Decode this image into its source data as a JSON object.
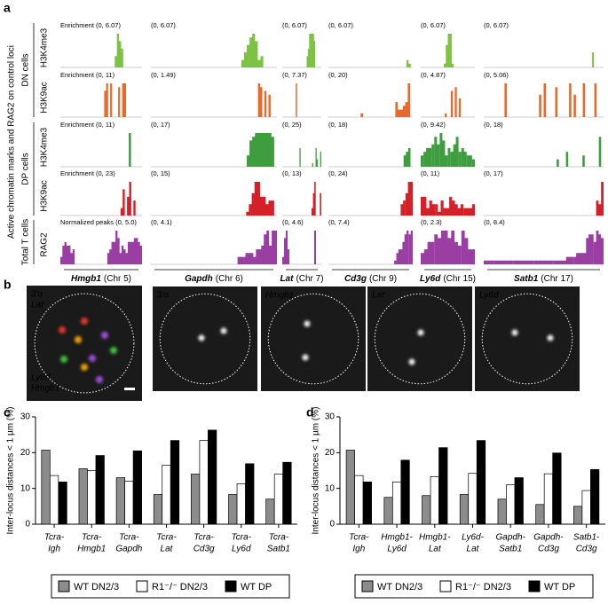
{
  "panel_labels": [
    "a",
    "b",
    "c",
    "d"
  ],
  "panel_a": {
    "title": "Active chromatin marks and RAG2 on control loci",
    "groups": [
      {
        "label": "DN cells",
        "rows": [
          0,
          1
        ]
      },
      {
        "label": "DP cells",
        "rows": [
          2,
          3
        ]
      },
      {
        "label": "Total T cells",
        "rows": [
          4
        ]
      }
    ],
    "rows": [
      {
        "mark": "H3K4me3",
        "color": "#7dc242",
        "ranges": [
          "Enrichment (0, 6.07)",
          "(0, 6.07)",
          "(0, 6.07)",
          "(0, 6.07)",
          "(0, 6.07)",
          "(0, 6.07)"
        ]
      },
      {
        "mark": "H3K9ac",
        "color": "#e8692a",
        "ranges": [
          "Enrichment (0, 11)",
          "(0, 1.49)",
          "(0, 7.37)",
          "(0, 20)",
          "(0, 4.87)",
          "(0, 5.06)"
        ]
      },
      {
        "mark": "H3K4me3",
        "color": "#3e9e3e",
        "ranges": [
          "Enrichment (0, 11)",
          "(0, 17)",
          "(0, 25)",
          "(0, 18)",
          "(0, 9.42)",
          "(0, 18)"
        ]
      },
      {
        "mark": "H3K9ac",
        "color": "#d62027",
        "ranges": [
          "Enrichment (0, 23)",
          "(0, 15)",
          "(0, 13)",
          "(0, 24)",
          "(0, 11)",
          "(0, 17)"
        ]
      },
      {
        "mark": "RAG2",
        "color": "#9b3ea3",
        "ranges": [
          "Normalized peaks (0, 5.0)",
          "(0, 4.1)",
          "(0, 4.6)",
          "(0, 7.4)",
          "(0, 2.3)",
          "(0, 8.4)"
        ]
      }
    ],
    "loci": [
      {
        "gene": "Hmgb1",
        "chr": "(Chr 5)"
      },
      {
        "gene": "Gapdh",
        "chr": "(Chr 6)"
      },
      {
        "gene": "Lat",
        "chr": "(Chr 7)"
      },
      {
        "gene": "Cd3g",
        "chr": "(Chr 9)"
      },
      {
        "gene": "Ly6d",
        "chr": "(Chr 15)"
      },
      {
        "gene": "Satb1",
        "chr": "(Chr 17)"
      }
    ]
  },
  "panel_b": {
    "merged_labels": [
      {
        "text": "3′α",
        "color": "#e8352b"
      },
      {
        "text": "Lat",
        "color": "#9b4fd0"
      },
      {
        "text": "Ly6d",
        "color": "#3fbf3f"
      },
      {
        "text": "Hmgb1",
        "color": "#f2d300"
      }
    ],
    "images": [
      "3′α",
      "Hmgb1",
      "Lat",
      "Ly6d"
    ]
  },
  "chart_data": [
    {
      "type": "bar",
      "ylabel": "Inter-locus distances < 1 µm (%)",
      "categories": [
        [
          "Tcra-",
          "Igh"
        ],
        [
          "Tcra-",
          "Hmgb1"
        ],
        [
          "Tcra-",
          "Gapdh"
        ],
        [
          "Tcra-",
          "Lat"
        ],
        [
          "Tcra-",
          "Cd3g"
        ],
        [
          "Tcra-",
          "Ly6d"
        ],
        [
          "Tcra-",
          "Satb1"
        ]
      ],
      "category_label_colors": [
        "#e3242b",
        "#000000",
        "#000000",
        "#000000",
        "#000000",
        "#000000",
        "#000000"
      ],
      "series": [
        {
          "name": "WT DN2/3",
          "color": "#8c8c8c",
          "values": [
            20.7,
            15.5,
            13.0,
            8.3,
            14.0,
            8.3,
            7.0
          ]
        },
        {
          "name": "R1⁻/⁻ DN2/3",
          "color": "#ffffff",
          "values": [
            13.6,
            15.0,
            12.0,
            16.5,
            23.4,
            11.3,
            14.0
          ]
        },
        {
          "name": "WT DP",
          "color": "#000000",
          "values": [
            11.8,
            19.2,
            20.5,
            23.4,
            26.3,
            16.9,
            17.3
          ]
        }
      ],
      "ylim": [
        0,
        30
      ],
      "yticks": [
        0,
        10,
        20,
        30
      ]
    },
    {
      "type": "bar",
      "ylabel": "Inter-locus distances < 1 µm (%)",
      "categories": [
        [
          "Tcra-",
          "Igh"
        ],
        [
          "Hmgb1-",
          "Ly6d"
        ],
        [
          "Hmgb1-",
          "Lat"
        ],
        [
          "Ly6d-",
          "Lat"
        ],
        [
          "Gapdh-",
          "Satb1"
        ],
        [
          "Gapdh-",
          "Cd3g"
        ],
        [
          "Satb1-",
          "Cd3g"
        ]
      ],
      "category_label_colors": [
        "#e3242b",
        "#000000",
        "#000000",
        "#000000",
        "#000000",
        "#000000",
        "#000000"
      ],
      "series": [
        {
          "name": "WT DN2/3",
          "color": "#8c8c8c",
          "values": [
            20.7,
            7.5,
            8.0,
            8.3,
            7.0,
            5.5,
            5.0
          ]
        },
        {
          "name": "R1⁻/⁻ DN2/3",
          "color": "#ffffff",
          "values": [
            13.6,
            11.8,
            13.3,
            14.2,
            11.0,
            14.1,
            9.4
          ]
        },
        {
          "name": "WT DP",
          "color": "#000000",
          "values": [
            11.8,
            17.9,
            21.4,
            23.4,
            13.0,
            19.9,
            15.3
          ]
        }
      ],
      "ylim": [
        0,
        30
      ],
      "yticks": [
        0,
        10,
        20,
        30
      ]
    }
  ]
}
